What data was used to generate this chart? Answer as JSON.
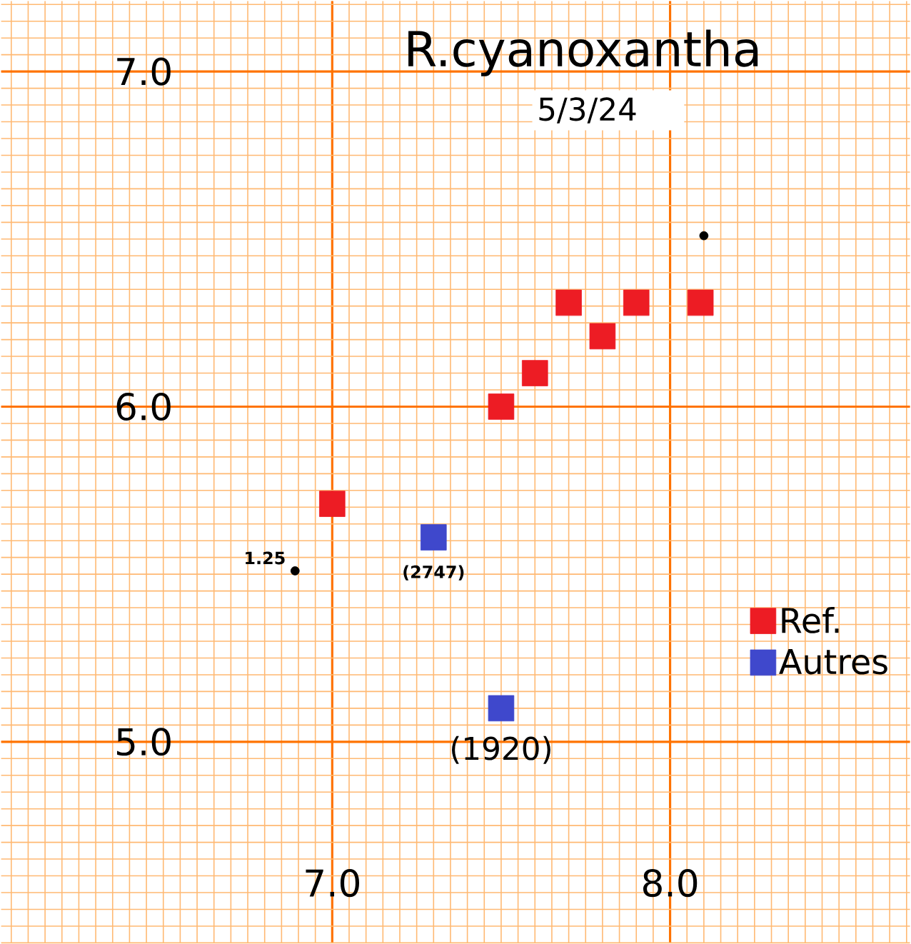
{
  "chart_data": {
    "type": "scatter",
    "title": "R.cyanoxantha",
    "subtitle": "5/3/24",
    "xlim": [
      6.02,
      8.71
    ],
    "ylim": [
      4.4,
      7.21
    ],
    "xticks": [
      {
        "value": 7.0,
        "label": "7.0"
      },
      {
        "value": 8.0,
        "label": "8.0"
      }
    ],
    "yticks": [
      {
        "value": 5.0,
        "label": "5.0"
      },
      {
        "value": 6.0,
        "label": "6.0"
      },
      {
        "value": 7.0,
        "label": "7.0"
      }
    ],
    "grid": true,
    "legend": "right",
    "series": [
      {
        "name": "Ref.",
        "color": "#ed1c24",
        "marker": "square",
        "x": [
          7.0,
          7.5,
          7.6,
          7.7,
          7.8,
          7.9,
          8.09
        ],
        "values": [
          5.71,
          6.0,
          6.1,
          6.31,
          6.21,
          6.31,
          6.31
        ]
      },
      {
        "name": "Autres",
        "color": "#3f48cc",
        "marker": "square",
        "x": [
          7.3,
          7.5
        ],
        "values": [
          5.61,
          5.1
        ]
      },
      {
        "color": "#000000",
        "marker": "circle",
        "x": [
          6.89,
          8.1
        ],
        "values": [
          5.51,
          6.51
        ]
      }
    ],
    "annotations": [
      {
        "text": "1.25",
        "x": 6.89,
        "y": 5.51
      },
      {
        "text": "(2747)",
        "x": 7.3,
        "y": 5.61
      },
      {
        "text": "(1920)",
        "x": 7.5,
        "y": 5.1
      }
    ]
  }
}
